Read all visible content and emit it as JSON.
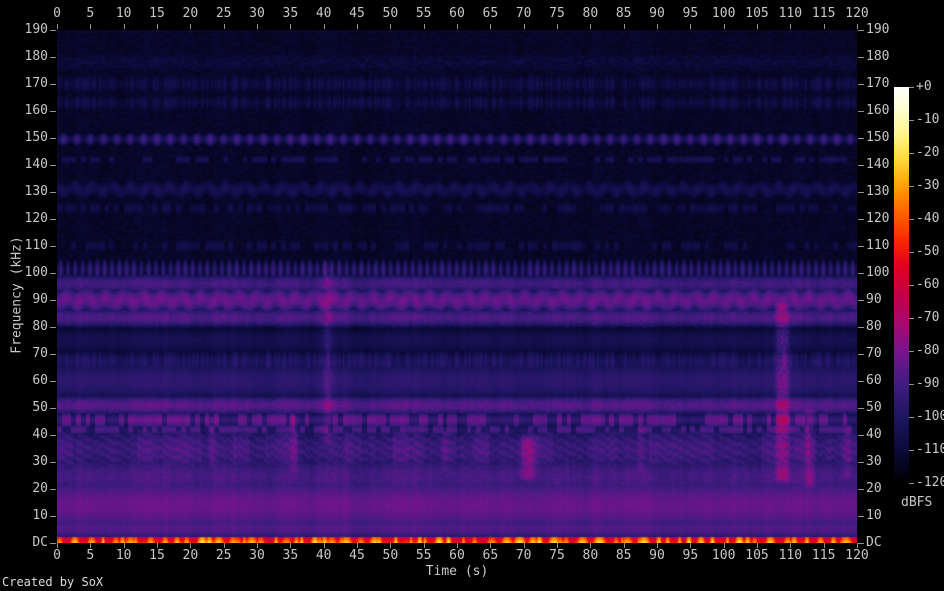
{
  "footer": {
    "credit": "Created by SoX"
  },
  "chart_data": {
    "type": "heatmap",
    "subtype": "spectrogram",
    "title": "",
    "xlabel": "Time (s)",
    "ylabel": "Frequency (kHz)",
    "x_range_s": [
      0,
      120
    ],
    "y_range_khz": [
      0,
      190
    ],
    "grid": false,
    "x_ticks": [
      0,
      5,
      10,
      15,
      20,
      25,
      30,
      35,
      40,
      45,
      50,
      55,
      60,
      65,
      70,
      75,
      80,
      85,
      90,
      95,
      100,
      105,
      110,
      115,
      120
    ],
    "y_ticks": [
      {
        "label": "190",
        "khz": 190
      },
      {
        "label": "180",
        "khz": 180
      },
      {
        "label": "170",
        "khz": 170
      },
      {
        "label": "160",
        "khz": 160
      },
      {
        "label": "150",
        "khz": 150
      },
      {
        "label": "140",
        "khz": 140
      },
      {
        "label": "130",
        "khz": 130
      },
      {
        "label": "120",
        "khz": 120
      },
      {
        "label": "110",
        "khz": 110
      },
      {
        "label": "100",
        "khz": 100
      },
      {
        "label": "90",
        "khz": 90
      },
      {
        "label": "80",
        "khz": 80
      },
      {
        "label": "70",
        "khz": 70
      },
      {
        "label": "60",
        "khz": 60
      },
      {
        "label": "50",
        "khz": 50
      },
      {
        "label": "40",
        "khz": 40
      },
      {
        "label": "30",
        "khz": 30
      },
      {
        "label": "20",
        "khz": 20
      },
      {
        "label": "10",
        "khz": 10
      },
      {
        "label": "DC",
        "khz": 0
      }
    ],
    "colorbar": {
      "label": "dBFS",
      "max_db": 0,
      "min_db": -120,
      "ticks": [
        {
          "label": "+0",
          "db": 0
        },
        {
          "label": "-10",
          "db": -10
        },
        {
          "label": "-20",
          "db": -20
        },
        {
          "label": "-30",
          "db": -30
        },
        {
          "label": "-40",
          "db": -40
        },
        {
          "label": "-50",
          "db": -50
        },
        {
          "label": "-60",
          "db": -60
        },
        {
          "label": "-70",
          "db": -70
        },
        {
          "label": "-80",
          "db": -80
        },
        {
          "label": "-90",
          "db": -90
        },
        {
          "label": "-100",
          "db": -100
        },
        {
          "label": "-110",
          "db": -110
        },
        {
          "label": "-120",
          "db": -120
        }
      ],
      "palette": [
        {
          "db": 0,
          "color": "#ffffff"
        },
        {
          "db": -6,
          "color": "#ffffd5"
        },
        {
          "db": -14,
          "color": "#fff592"
        },
        {
          "db": -22,
          "color": "#ffd93b"
        },
        {
          "db": -30,
          "color": "#ffa006"
        },
        {
          "db": -38,
          "color": "#ff6400"
        },
        {
          "db": -46,
          "color": "#f72c00"
        },
        {
          "db": -54,
          "color": "#e3001f"
        },
        {
          "db": -63,
          "color": "#c10045"
        },
        {
          "db": -72,
          "color": "#a30b72"
        },
        {
          "db": -80,
          "color": "#79148c"
        },
        {
          "db": -90,
          "color": "#411c80"
        },
        {
          "db": -100,
          "color": "#1e1560"
        },
        {
          "db": -110,
          "color": "#0b0a3a"
        },
        {
          "db": -120,
          "color": "#000000"
        }
      ]
    },
    "background_level_db": -113,
    "bands": [
      {
        "khz": 178,
        "half_width_khz": 4,
        "level_db": -110,
        "texture": "mottle"
      },
      {
        "khz": 170,
        "half_width_khz": 3,
        "level_db": -108,
        "texture": "streaks"
      },
      {
        "khz": 163,
        "half_width_khz": 2.5,
        "level_db": -108,
        "texture": "streaks"
      },
      {
        "khz": 149.5,
        "half_width_khz": 1.4,
        "level_db": -91,
        "texture": "dots",
        "period_s": 2
      },
      {
        "khz": 142,
        "half_width_khz": 1.2,
        "level_db": -106,
        "texture": "dashes"
      },
      {
        "khz": 131,
        "half_width_khz": 2.5,
        "level_db": -105,
        "texture": "waves"
      },
      {
        "khz": 124,
        "half_width_khz": 2,
        "level_db": -109,
        "texture": "dashes"
      },
      {
        "khz": 110,
        "half_width_khz": 2,
        "level_db": -109,
        "texture": "dashes"
      },
      {
        "khz": 101,
        "half_width_khz": 2.5,
        "level_db": -93,
        "texture": "dots",
        "period_s": 1.1
      },
      {
        "khz": 96,
        "half_width_khz": 2,
        "level_db": -90,
        "texture": "rough"
      },
      {
        "khz": 90,
        "half_width_khz": 2.5,
        "level_db": -84,
        "texture": "waves"
      },
      {
        "khz": 83.5,
        "half_width_khz": 2,
        "level_db": -88,
        "texture": "rough"
      },
      {
        "khz": 75,
        "half_width_khz": 4,
        "level_db": -104,
        "texture": "smooth"
      },
      {
        "khz": 67,
        "half_width_khz": 3,
        "level_db": -100,
        "texture": "streaks"
      },
      {
        "khz": 60,
        "half_width_khz": 5,
        "level_db": -96,
        "texture": "smooth"
      },
      {
        "khz": 51,
        "half_width_khz": 2,
        "level_db": -86,
        "texture": "rough"
      },
      {
        "khz": 45.5,
        "half_width_khz": 1.6,
        "level_db": -85,
        "texture": "dashes"
      },
      {
        "khz": 42,
        "half_width_khz": 1.2,
        "level_db": -90,
        "texture": "dashes"
      },
      {
        "khz": 34.5,
        "half_width_khz": 5.5,
        "level_db": -91,
        "texture": "chirps"
      },
      {
        "khz": 24.5,
        "half_width_khz": 4.5,
        "level_db": -89,
        "texture": "rough"
      },
      {
        "khz": 14,
        "half_width_khz": 6,
        "level_db": -83,
        "texture": "smooth"
      },
      {
        "khz": 5.5,
        "half_width_khz": 2.5,
        "level_db": -87,
        "texture": "smooth"
      }
    ],
    "events": [
      {
        "t_s": 23.2,
        "f_low_khz": 30,
        "f_high_khz": 46,
        "boost_db": 7,
        "width_s": 0.5
      },
      {
        "t_s": 35.6,
        "f_low_khz": 28,
        "f_high_khz": 46,
        "boost_db": 8,
        "width_s": 0.6
      },
      {
        "t_s": 40.6,
        "f_low_khz": 38,
        "f_high_khz": 103,
        "boost_db": 9,
        "width_s": 0.7
      },
      {
        "t_s": 58.2,
        "f_low_khz": 28,
        "f_high_khz": 42,
        "boost_db": 6,
        "width_s": 0.5
      },
      {
        "t_s": 70.7,
        "f_low_khz": 25,
        "f_high_khz": 38,
        "boost_db": 13,
        "width_s": 1.3
      },
      {
        "t_s": 87.5,
        "f_low_khz": 28,
        "f_high_khz": 42,
        "boost_db": 6,
        "width_s": 0.5
      },
      {
        "t_s": 108.2,
        "f_low_khz": 24,
        "f_high_khz": 87,
        "boost_db": 9,
        "width_s": 0.5
      },
      {
        "t_s": 109.1,
        "f_low_khz": 24,
        "f_high_khz": 87,
        "boost_db": 15,
        "width_s": 0.8
      },
      {
        "t_s": 112.9,
        "f_low_khz": 22,
        "f_high_khz": 48,
        "boost_db": 12,
        "width_s": 0.8
      },
      {
        "t_s": 118.6,
        "f_low_khz": 25,
        "f_high_khz": 42,
        "boost_db": 7,
        "width_s": 0.5
      }
    ],
    "dc_band": {
      "max_khz": 2.2,
      "base_level_db": -50,
      "blob_level_db": [
        -30,
        -16
      ],
      "blob_spacing_s": [
        0.6,
        2.6
      ],
      "blob_width_s": [
        0.25,
        1.0
      ]
    },
    "axis_color": "#c8c8c8",
    "tick_color": "#909090",
    "bg_color": "#000000"
  }
}
